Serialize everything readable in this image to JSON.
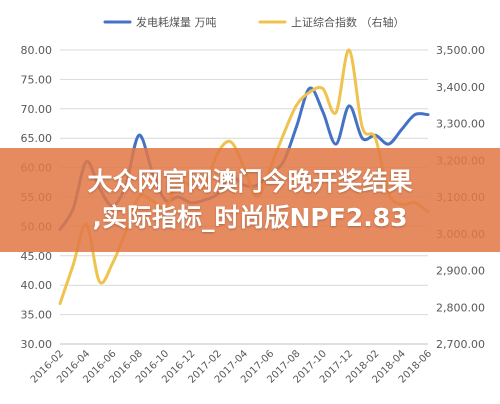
{
  "chart_data": {
    "type": "line",
    "categories": [
      "2016-02",
      "2016-03",
      "2016-04",
      "2016-05",
      "2016-06",
      "2016-07",
      "2016-08",
      "2016-09",
      "2016-10",
      "2016-11",
      "2016-12",
      "2017-01",
      "2017-02",
      "2017-03",
      "2017-04",
      "2017-05",
      "2017-06",
      "2017-07",
      "2017-08",
      "2017-09",
      "2017-10",
      "2017-11",
      "2017-12",
      "2018-01",
      "2018-02",
      "2018-03",
      "2018-04",
      "2018-05",
      "2018-06"
    ],
    "xtick_labels": [
      "2016-02",
      "2016-04",
      "2016-06",
      "2016-08",
      "2016-10",
      "2016-12",
      "2017-02",
      "2017-04",
      "2017-06",
      "2017-08",
      "2017-10",
      "2017-12",
      "2018-02",
      "2018-04",
      "2018-06"
    ],
    "series": [
      {
        "name": "发电耗煤量 万吨",
        "axis": "left",
        "color": "#4472C4",
        "values": [
          49.5,
          53.0,
          61.0,
          56.5,
          53.5,
          57.0,
          65.5,
          59.5,
          54.5,
          55.0,
          54.0,
          54.5,
          55.5,
          58.5,
          57.0,
          57.0,
          59.0,
          61.0,
          67.0,
          73.5,
          69.5,
          64.0,
          70.5,
          65.0,
          65.5,
          64.0,
          66.5,
          69.0,
          69.0
        ]
      },
      {
        "name": "上证综合指数 （右轴）",
        "axis": "right",
        "color": "#F0C34E",
        "values": [
          2810,
          2915,
          3025,
          2870,
          2920,
          3005,
          3100,
          3090,
          3070,
          3140,
          3130,
          3130,
          3220,
          3250,
          3180,
          3100,
          3180,
          3270,
          3350,
          3385,
          3395,
          3330,
          3500,
          3290,
          3260,
          3110,
          3080,
          3085,
          3060
        ]
      }
    ],
    "y_left": {
      "ylim": [
        30,
        80
      ],
      "ticks": [
        "30.00",
        "35.00",
        "40.00",
        "45.00",
        "50.00",
        "55.00",
        "60.00",
        "65.00",
        "70.00",
        "75.00",
        "80.00"
      ]
    },
    "y_right": {
      "ylim": [
        2700,
        3500
      ],
      "ticks": [
        "2,700.00",
        "2,800.00",
        "2,900.00",
        "3,000.00",
        "3,100.00",
        "3,200.00",
        "3,300.00",
        "3,400.00",
        "3,500.00"
      ]
    },
    "grid": true,
    "legend_position": "top-center"
  },
  "banner": {
    "line1": "大众网官网澳门今晚开奖结果",
    "line2": ",实际指标_时尚版NPF2.83"
  }
}
